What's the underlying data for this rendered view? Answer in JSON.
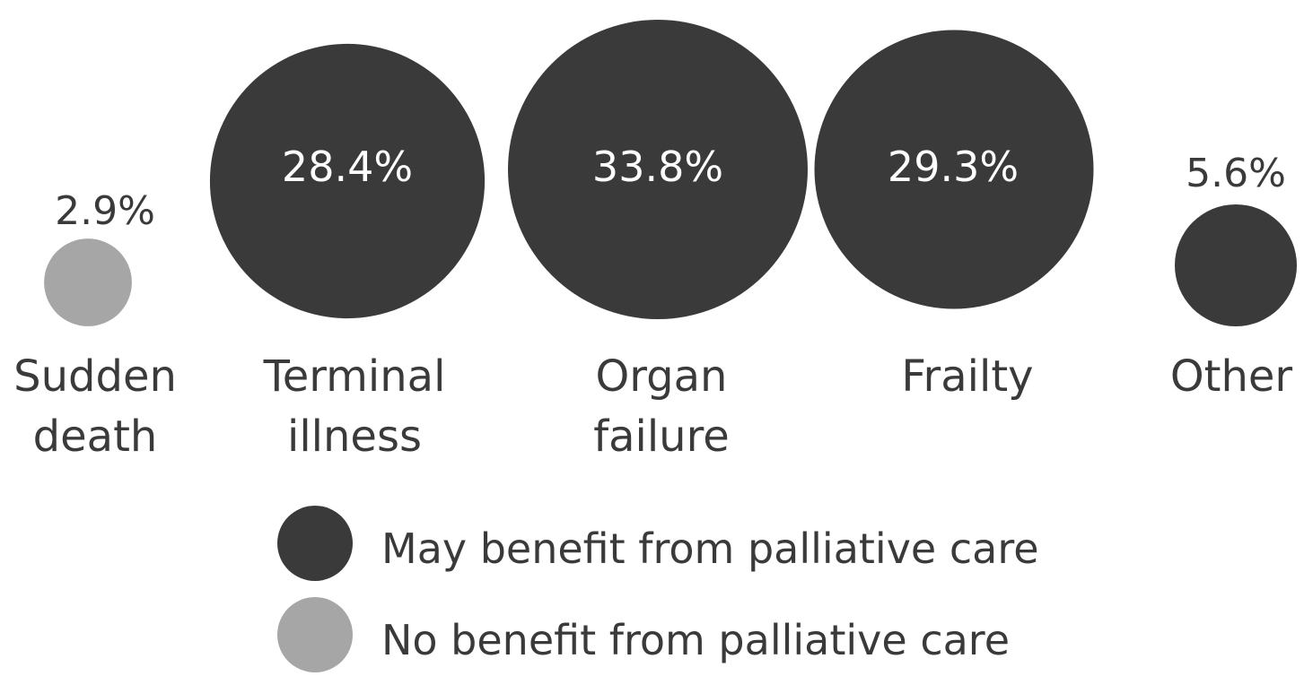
{
  "chart_data": {
    "type": "bubble",
    "categories": [
      {
        "key": "sudden",
        "line1": "Sudden",
        "line2": "death",
        "value": 2.9,
        "value_label": "2.9%",
        "group": "no_benefit"
      },
      {
        "key": "terminal",
        "line1": "Terminal",
        "line2": "illness",
        "value": 28.4,
        "value_label": "28.4%",
        "group": "may_benefit"
      },
      {
        "key": "organ",
        "line1": "Organ",
        "line2": "failure",
        "value": 33.8,
        "value_label": "33.8%",
        "group": "may_benefit"
      },
      {
        "key": "frailty",
        "line1": "Frailty",
        "line2": "",
        "value": 29.3,
        "value_label": "29.3%",
        "group": "may_benefit"
      },
      {
        "key": "other",
        "line1": "Other",
        "line2": "",
        "value": 5.6,
        "value_label": "5.6%",
        "group": "may_benefit"
      }
    ],
    "legend": [
      {
        "group": "may_benefit",
        "label": "May benefit from palliative care"
      },
      {
        "group": "no_benefit",
        "label": "No benefit from palliative care"
      }
    ],
    "colors": {
      "may_benefit": "#3a3a3a",
      "no_benefit": "#a6a6a6"
    },
    "legend_position": "bottom-center"
  }
}
